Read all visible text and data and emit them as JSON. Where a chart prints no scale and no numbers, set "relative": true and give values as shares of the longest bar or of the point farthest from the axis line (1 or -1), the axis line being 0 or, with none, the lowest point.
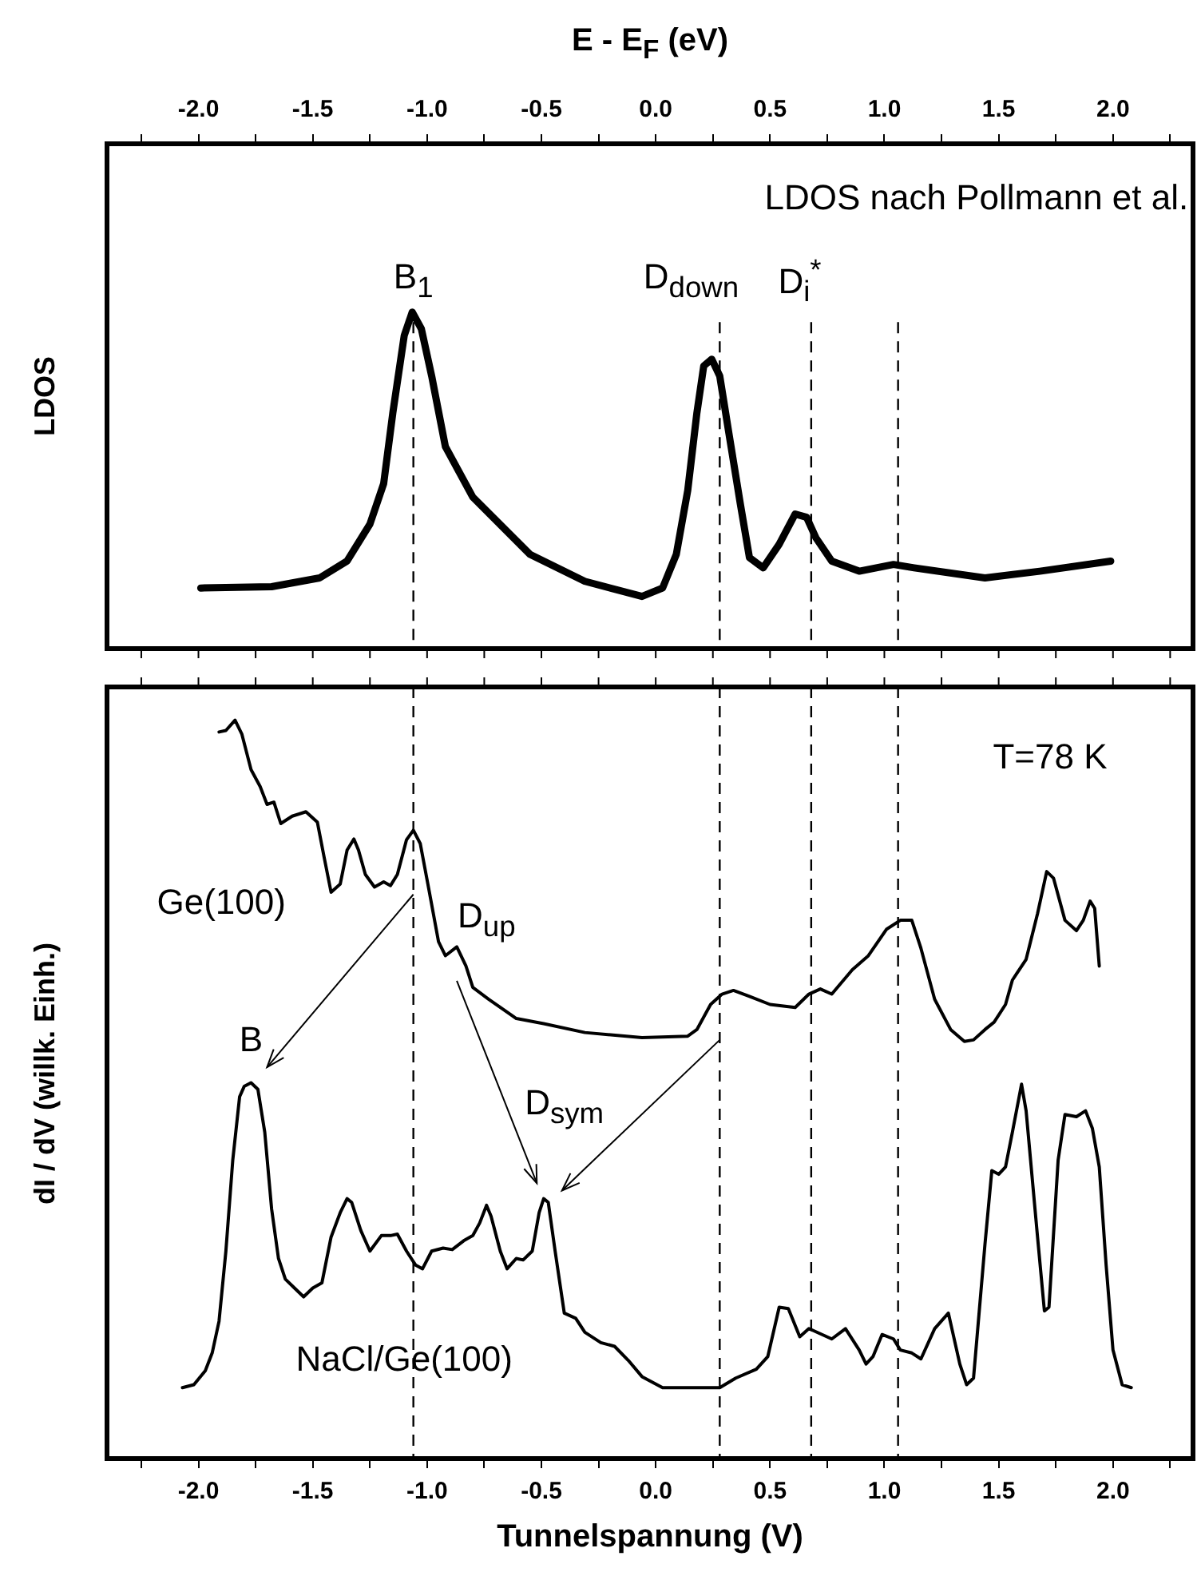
{
  "chart_data": [
    {
      "type": "line",
      "relative": true,
      "ylabel": "LDOS",
      "xlabel": "E - E$_{F}$ (eV)",
      "legend": false,
      "marker": "none",
      "xlim": [
        -2.4,
        2.35
      ],
      "xticks": [
        {
          "value": -2.25,
          "label": null
        },
        {
          "value": -2,
          "label": "-2.0"
        },
        {
          "value": -1.75,
          "label": null
        },
        {
          "value": -1.5,
          "label": "-1.5"
        },
        {
          "value": -1.25,
          "label": null
        },
        {
          "value": -1,
          "label": "-1.0"
        },
        {
          "value": -0.75,
          "label": null
        },
        {
          "value": -0.5,
          "label": "-0.5"
        },
        {
          "value": -0.25,
          "label": null
        },
        {
          "value": 0,
          "label": "0.0"
        },
        {
          "value": 0.25,
          "label": null
        },
        {
          "value": 0.5,
          "label": "0.5"
        },
        {
          "value": 0.75,
          "label": null
        },
        {
          "value": 1,
          "label": "1.0"
        },
        {
          "value": 1.25,
          "label": null
        },
        {
          "value": 1.5,
          "label": "1.5"
        },
        {
          "value": 1.75,
          "label": null
        },
        {
          "value": 2,
          "label": "2.0"
        },
        {
          "value": 2.25,
          "label": null
        }
      ],
      "annotations": [
        "LDOS nach Pollmann et al.",
        "B$_{1}$",
        "D$_{down}$",
        "D$_{i}$$^{*}$"
      ],
      "ref_lines": [
        {
          "axis": "x",
          "value": -1.06,
          "line_style": "dashed",
          "color": "#000000"
        },
        {
          "axis": "x",
          "value": 0.28,
          "line_style": "dashed",
          "color": "#000000"
        },
        {
          "axis": "x",
          "value": 0.68,
          "line_style": "dashed",
          "color": "#000000"
        },
        {
          "axis": "x",
          "value": 1.06,
          "line_style": "dashed",
          "color": "#000000"
        }
      ],
      "series": [
        {
          "color": "#000000",
          "x": [
            -1.99,
            -1.68,
            -1.47,
            -1.35,
            -1.25,
            -1.19,
            -1.15,
            -1.1,
            -1.065,
            -1.025,
            -0.98,
            -0.92,
            -0.8,
            -0.55,
            -0.31,
            -0.06,
            0.03,
            0.09,
            0.14,
            0.18,
            0.21,
            0.245,
            0.28,
            0.32,
            0.37,
            0.41,
            0.47,
            0.54,
            0.61,
            0.66,
            0.7,
            0.77,
            0.89,
            1.04,
            1.13,
            1.44,
            1.68,
            1.99
          ],
          "values": [
            0.18,
            0.184,
            0.21,
            0.26,
            0.37,
            0.49,
            0.7,
            0.93,
            1.0,
            0.95,
            0.81,
            0.6,
            0.45,
            0.28,
            0.2,
            0.155,
            0.18,
            0.28,
            0.47,
            0.7,
            0.84,
            0.86,
            0.81,
            0.64,
            0.43,
            0.27,
            0.24,
            0.31,
            0.4,
            0.39,
            0.33,
            0.26,
            0.23,
            0.25,
            0.24,
            0.21,
            0.23,
            0.26
          ]
        }
      ]
    },
    {
      "type": "line",
      "relative": true,
      "ylabel": "dI / dV (willk. Einh.)",
      "xlabel": "Tunnelspannung (V)",
      "legend": false,
      "marker": "none",
      "xlim": [
        -2.4,
        2.35
      ],
      "xticks": [
        {
          "value": -2.25,
          "label": null
        },
        {
          "value": -2,
          "label": "-2.0"
        },
        {
          "value": -1.75,
          "label": null
        },
        {
          "value": -1.5,
          "label": "-1.5"
        },
        {
          "value": -1.25,
          "label": null
        },
        {
          "value": -1,
          "label": "-1.0"
        },
        {
          "value": -0.75,
          "label": null
        },
        {
          "value": -0.5,
          "label": "-0.5"
        },
        {
          "value": -0.25,
          "label": null
        },
        {
          "value": 0,
          "label": "0.0"
        },
        {
          "value": 0.25,
          "label": null
        },
        {
          "value": 0.5,
          "label": "0.5"
        },
        {
          "value": 0.75,
          "label": null
        },
        {
          "value": 1,
          "label": "1.0"
        },
        {
          "value": 1.25,
          "label": null
        },
        {
          "value": 1.5,
          "label": "1.5"
        },
        {
          "value": 1.75,
          "label": null
        },
        {
          "value": 2,
          "label": "2.0"
        },
        {
          "value": 2.25,
          "label": null
        }
      ],
      "annotations": [
        "T=78 K",
        "D$_{up}$",
        "B",
        "D$_{sym}$"
      ],
      "ref_lines": [
        {
          "axis": "x",
          "value": -1.06,
          "line_style": "dashed",
          "color": "#000000"
        },
        {
          "axis": "x",
          "value": 0.28,
          "line_style": "dashed",
          "color": "#000000"
        },
        {
          "axis": "x",
          "value": 0.68,
          "line_style": "dashed",
          "color": "#000000"
        },
        {
          "axis": "x",
          "value": 1.06,
          "line_style": "dashed",
          "color": "#000000"
        }
      ],
      "series": [
        {
          "name": "Ge(100)",
          "color": "#000000",
          "x": [
            -1.91,
            -1.88,
            -1.84,
            -1.81,
            -1.77,
            -1.73,
            -1.7,
            -1.67,
            -1.64,
            -1.59,
            -1.53,
            -1.48,
            -1.45,
            -1.42,
            -1.38,
            -1.35,
            -1.32,
            -1.3,
            -1.27,
            -1.23,
            -1.19,
            -1.16,
            -1.13,
            -1.09,
            -1.06,
            -1.03,
            -0.99,
            -0.95,
            -0.92,
            -0.87,
            -0.83,
            -0.8,
            -0.73,
            -0.61,
            -0.49,
            -0.31,
            -0.06,
            0.14,
            0.18,
            0.24,
            0.29,
            0.34,
            0.41,
            0.5,
            0.61,
            0.67,
            0.72,
            0.77,
            0.86,
            0.93,
            1.01,
            1.07,
            1.12,
            1.16,
            1.22,
            1.29,
            1.35,
            1.39,
            1.44,
            1.48,
            1.53,
            1.56,
            1.62,
            1.67,
            1.71,
            1.74,
            1.79,
            1.84,
            1.87,
            1.9,
            1.92,
            1.94
          ],
          "values": [
            0.984,
            0.986,
            1.0,
            0.981,
            0.933,
            0.91,
            0.886,
            0.889,
            0.86,
            0.87,
            0.876,
            0.862,
            0.814,
            0.767,
            0.778,
            0.824,
            0.839,
            0.824,
            0.791,
            0.774,
            0.781,
            0.776,
            0.791,
            0.838,
            0.851,
            0.833,
            0.767,
            0.7,
            0.681,
            0.693,
            0.667,
            0.638,
            0.622,
            0.596,
            0.589,
            0.577,
            0.57,
            0.572,
            0.581,
            0.615,
            0.629,
            0.634,
            0.626,
            0.615,
            0.611,
            0.629,
            0.636,
            0.629,
            0.662,
            0.681,
            0.717,
            0.729,
            0.729,
            0.691,
            0.622,
            0.581,
            0.565,
            0.567,
            0.581,
            0.591,
            0.615,
            0.648,
            0.676,
            0.738,
            0.795,
            0.786,
            0.729,
            0.715,
            0.729,
            0.755,
            0.745,
            0.667
          ]
        },
        {
          "name": "NaCl/Ge(100)",
          "color": "#000000",
          "x": [
            -2.07,
            -2.02,
            -1.97,
            -1.94,
            -1.91,
            -1.88,
            -1.85,
            -1.82,
            -1.8,
            -1.77,
            -1.74,
            -1.71,
            -1.68,
            -1.65,
            -1.62,
            -1.58,
            -1.54,
            -1.5,
            -1.46,
            -1.42,
            -1.38,
            -1.35,
            -1.33,
            -1.29,
            -1.25,
            -1.2,
            -1.16,
            -1.13,
            -1.09,
            -1.05,
            -1.02,
            -0.98,
            -0.93,
            -0.89,
            -0.84,
            -0.8,
            -0.77,
            -0.74,
            -0.72,
            -0.68,
            -0.65,
            -0.61,
            -0.58,
            -0.54,
            -0.51,
            -0.49,
            -0.47,
            -0.44,
            -0.4,
            -0.35,
            -0.31,
            -0.24,
            -0.18,
            -0.12,
            -0.06,
            0.03,
            0.28,
            0.35,
            0.44,
            0.49,
            0.54,
            0.58,
            0.63,
            0.67,
            0.77,
            0.83,
            0.89,
            0.92,
            0.95,
            0.99,
            1.04,
            1.07,
            1.12,
            1.16,
            1.22,
            1.28,
            1.33,
            1.36,
            1.39,
            1.44,
            1.47,
            1.5,
            1.53,
            1.56,
            1.6,
            1.62,
            1.67,
            1.7,
            1.72,
            1.76,
            1.79,
            1.84,
            1.88,
            1.91,
            1.94,
            1.97,
            2.0,
            2.04,
            2.08
          ],
          "values": [
            0.096,
            0.1,
            0.119,
            0.143,
            0.186,
            0.281,
            0.404,
            0.49,
            0.504,
            0.509,
            0.5,
            0.442,
            0.338,
            0.271,
            0.243,
            0.231,
            0.219,
            0.231,
            0.238,
            0.3,
            0.333,
            0.352,
            0.347,
            0.309,
            0.281,
            0.302,
            0.302,
            0.304,
            0.281,
            0.262,
            0.257,
            0.281,
            0.285,
            0.283,
            0.295,
            0.302,
            0.319,
            0.343,
            0.328,
            0.281,
            0.257,
            0.271,
            0.269,
            0.281,
            0.333,
            0.352,
            0.347,
            0.281,
            0.197,
            0.19,
            0.171,
            0.157,
            0.152,
            0.133,
            0.111,
            0.096,
            0.096,
            0.109,
            0.121,
            0.138,
            0.205,
            0.203,
            0.165,
            0.176,
            0.162,
            0.176,
            0.147,
            0.128,
            0.138,
            0.168,
            0.162,
            0.147,
            0.143,
            0.135,
            0.176,
            0.197,
            0.128,
            0.1,
            0.109,
            0.29,
            0.39,
            0.385,
            0.395,
            0.442,
            0.507,
            0.471,
            0.3,
            0.2,
            0.205,
            0.404,
            0.466,
            0.463,
            0.471,
            0.447,
            0.395,
            0.262,
            0.147,
            0.1,
            0.096
          ]
        }
      ]
    }
  ]
}
